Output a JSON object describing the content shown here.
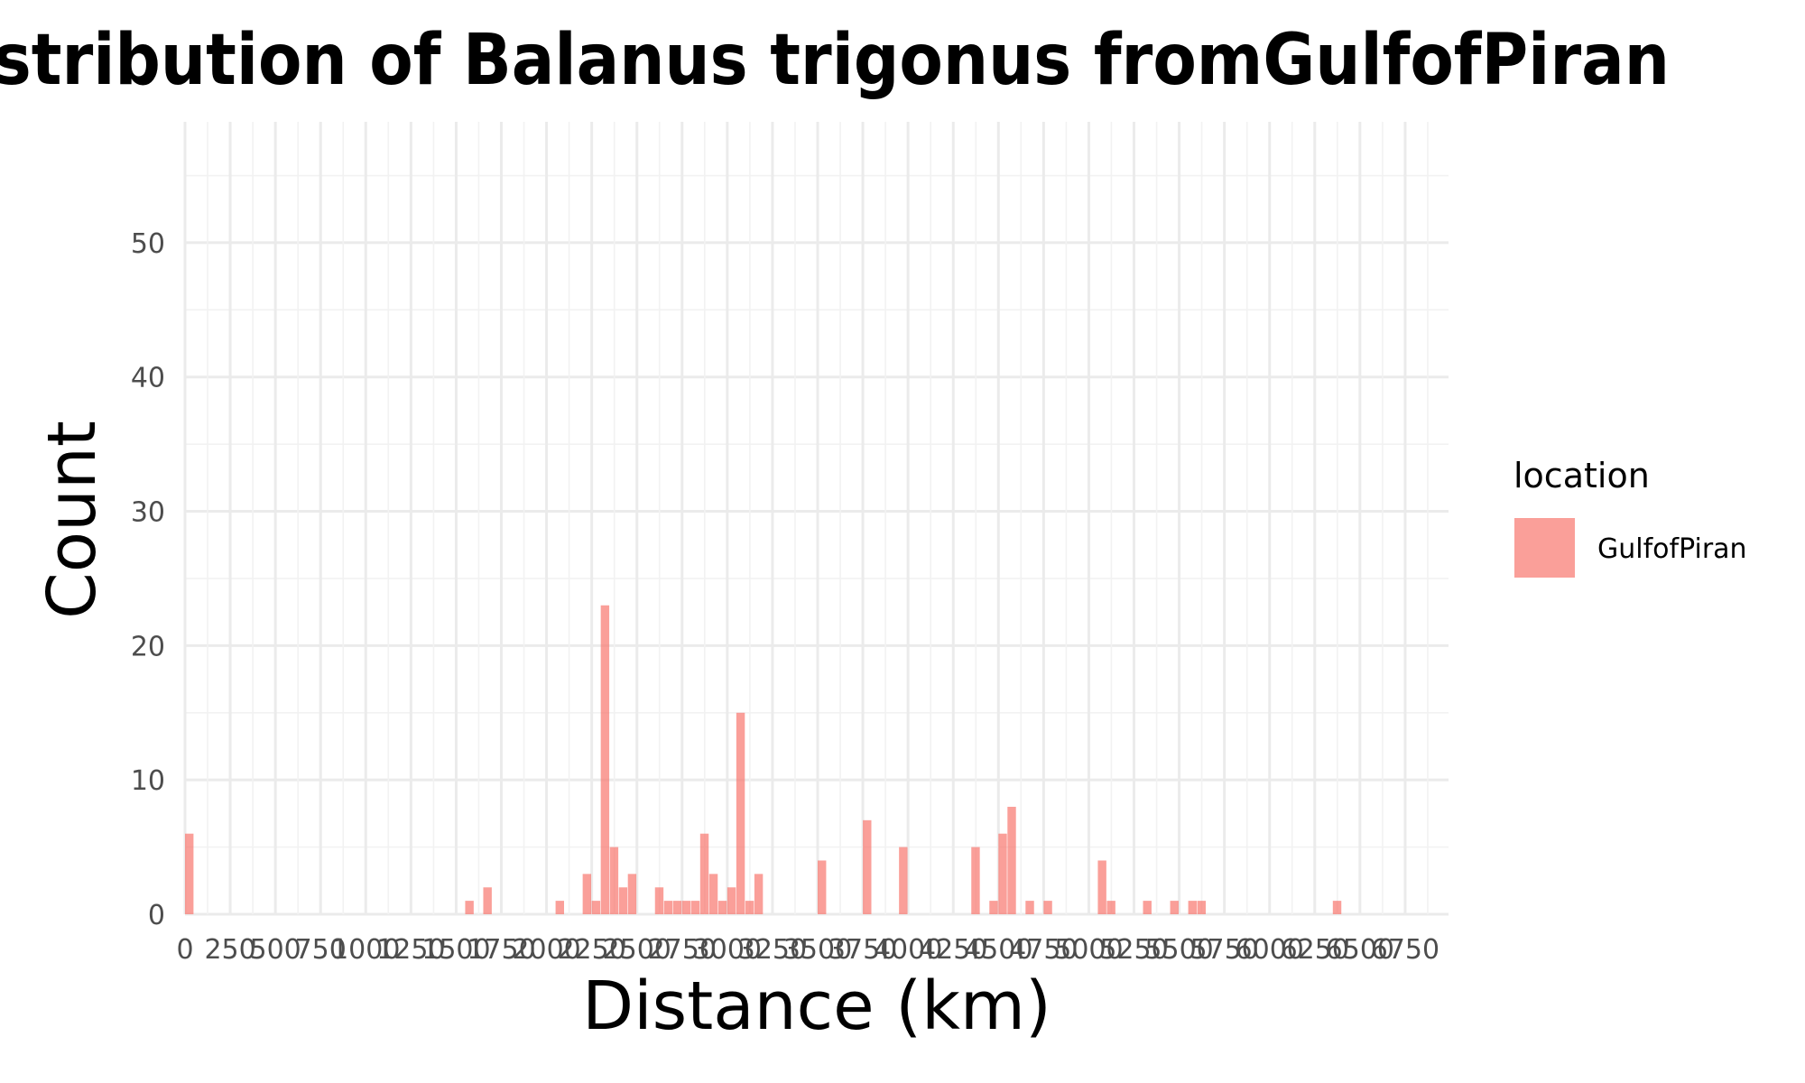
{
  "chart_data": {
    "type": "bar",
    "title": "Distribution of Balanus trigonus fromGulfofPiran",
    "xlabel": "Distance (km)",
    "ylabel": "Count",
    "xlim": [
      0,
      6990
    ],
    "ylim": [
      0,
      59
    ],
    "bin_width": 50,
    "x_ticks": [
      0,
      250,
      500,
      750,
      1000,
      1250,
      1500,
      1750,
      2000,
      2250,
      2500,
      2750,
      3000,
      3250,
      3500,
      3750,
      4000,
      4250,
      4500,
      4750,
      5000,
      5250,
      5500,
      5750,
      6000,
      6250,
      6500,
      6750
    ],
    "x_tick_labels": [
      "0",
      "250",
      "500",
      "750",
      "1000",
      "1250",
      "1500",
      "1750",
      "2000",
      "2250",
      "2500",
      "2750",
      "3000",
      "3250",
      "3500",
      "3750",
      "4000",
      "4250",
      "4500",
      "4750",
      "5000",
      "5250",
      "5500",
      "5750",
      "6000",
      "6250",
      "6500",
      "6750"
    ],
    "y_ticks": [
      0,
      10,
      20,
      30,
      40,
      50
    ],
    "y_tick_labels": [
      "0",
      "10",
      "20",
      "30",
      "40",
      "50"
    ],
    "grid": true,
    "legend": {
      "title": "location",
      "placement": "right"
    },
    "series": [
      {
        "name": "GulfofPiran",
        "color": "#F8766D",
        "bin_starts": [
          0,
          1550,
          1650,
          2050,
          2200,
          2250,
          2300,
          2350,
          2400,
          2450,
          2600,
          2650,
          2700,
          2750,
          2800,
          2850,
          2900,
          2950,
          3000,
          3050,
          3100,
          3150,
          3500,
          3750,
          3950,
          4350,
          4450,
          4500,
          4550,
          4650,
          4750,
          5050,
          5100,
          5300,
          5450,
          5550,
          5600,
          6350
        ],
        "values": [
          6,
          1,
          2,
          1,
          3,
          1,
          23,
          5,
          2,
          3,
          2,
          1,
          1,
          1,
          1,
          6,
          3,
          1,
          2,
          15,
          1,
          3,
          4,
          7,
          5,
          5,
          1,
          6,
          8,
          1,
          1,
          4,
          1,
          1,
          1,
          1,
          1,
          1
        ]
      }
    ]
  }
}
